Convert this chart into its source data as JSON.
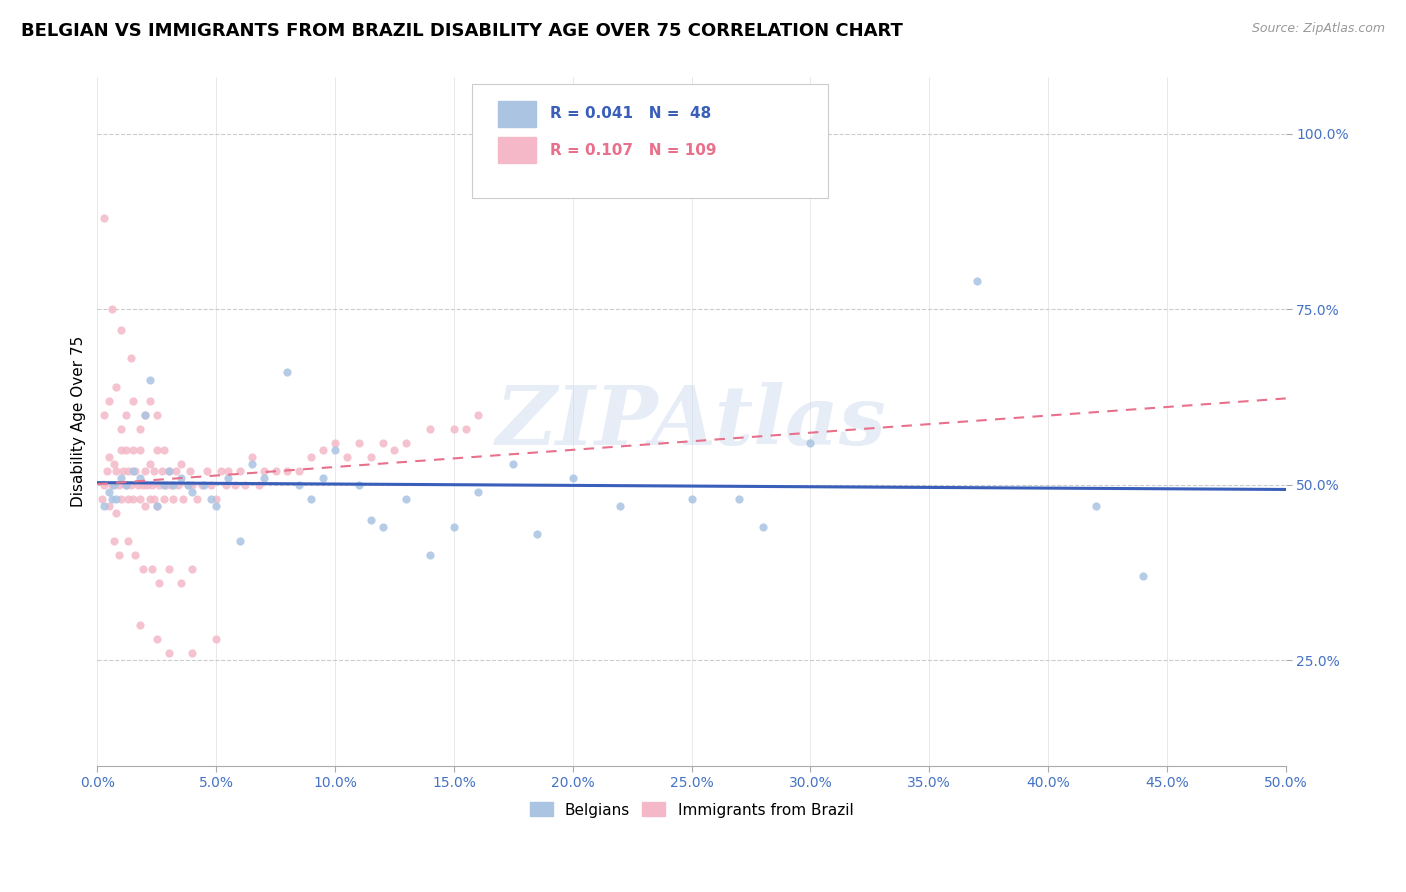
{
  "title": "BELGIAN VS IMMIGRANTS FROM BRAZIL DISABILITY AGE OVER 75 CORRELATION CHART",
  "source_text": "Source: ZipAtlas.com",
  "ylabel": "Disability Age Over 75",
  "xlim": [
    0.0,
    0.5
  ],
  "ylim": [
    0.1,
    1.08
  ],
  "x_tick_labels": [
    "0.0%",
    "5.0%",
    "10.0%",
    "15.0%",
    "20.0%",
    "25.0%",
    "30.0%",
    "35.0%",
    "40.0%",
    "45.0%",
    "50.0%"
  ],
  "x_tick_vals": [
    0.0,
    0.05,
    0.1,
    0.15,
    0.2,
    0.25,
    0.3,
    0.35,
    0.4,
    0.45,
    0.5
  ],
  "y_tick_labels": [
    "25.0%",
    "50.0%",
    "75.0%",
    "100.0%"
  ],
  "y_tick_vals": [
    0.25,
    0.5,
    0.75,
    1.0
  ],
  "belgian_color": "#aac4e2",
  "brazil_color": "#f4b8c8",
  "belgian_line_color": "#3a5fba",
  "brazil_line_color": "#e8708a",
  "legend_label_belgian": "Belgians",
  "legend_label_brazil": "Immigrants from Brazil",
  "watermark": "ZIPAtlas",
  "tick_color": "#4472c4",
  "background_color": "#ffffff",
  "belgian_scatter_x": [
    0.003,
    0.005,
    0.006,
    0.007,
    0.008,
    0.01,
    0.012,
    0.015,
    0.018,
    0.02,
    0.022,
    0.025,
    0.028,
    0.03,
    0.032,
    0.035,
    0.038,
    0.04,
    0.045,
    0.048,
    0.05,
    0.055,
    0.06,
    0.065,
    0.07,
    0.08,
    0.085,
    0.09,
    0.095,
    0.1,
    0.11,
    0.115,
    0.12,
    0.13,
    0.14,
    0.15,
    0.16,
    0.175,
    0.185,
    0.2,
    0.22,
    0.25,
    0.27,
    0.3,
    0.37,
    0.42,
    0.44,
    0.28
  ],
  "belgian_scatter_y": [
    0.47,
    0.49,
    0.48,
    0.5,
    0.48,
    0.51,
    0.5,
    0.52,
    0.51,
    0.6,
    0.65,
    0.47,
    0.5,
    0.52,
    0.5,
    0.51,
    0.5,
    0.49,
    0.5,
    0.48,
    0.47,
    0.51,
    0.42,
    0.53,
    0.51,
    0.66,
    0.5,
    0.48,
    0.51,
    0.55,
    0.5,
    0.45,
    0.44,
    0.48,
    0.4,
    0.44,
    0.49,
    0.53,
    0.43,
    0.51,
    0.47,
    0.48,
    0.48,
    0.56,
    0.79,
    0.47,
    0.37,
    0.44
  ],
  "brazil_scatter_x": [
    0.002,
    0.003,
    0.004,
    0.005,
    0.005,
    0.006,
    0.007,
    0.008,
    0.008,
    0.009,
    0.01,
    0.01,
    0.011,
    0.012,
    0.012,
    0.013,
    0.013,
    0.014,
    0.015,
    0.015,
    0.016,
    0.017,
    0.018,
    0.018,
    0.019,
    0.02,
    0.02,
    0.021,
    0.022,
    0.022,
    0.023,
    0.024,
    0.024,
    0.025,
    0.025,
    0.026,
    0.027,
    0.028,
    0.028,
    0.029,
    0.03,
    0.031,
    0.032,
    0.033,
    0.034,
    0.035,
    0.036,
    0.038,
    0.039,
    0.04,
    0.042,
    0.044,
    0.046,
    0.048,
    0.05,
    0.052,
    0.054,
    0.055,
    0.058,
    0.06,
    0.062,
    0.065,
    0.068,
    0.07,
    0.075,
    0.08,
    0.085,
    0.09,
    0.095,
    0.1,
    0.105,
    0.11,
    0.115,
    0.12,
    0.125,
    0.13,
    0.14,
    0.15,
    0.155,
    0.16,
    0.003,
    0.005,
    0.008,
    0.01,
    0.012,
    0.015,
    0.018,
    0.02,
    0.022,
    0.025,
    0.007,
    0.009,
    0.013,
    0.016,
    0.019,
    0.023,
    0.026,
    0.03,
    0.035,
    0.04,
    0.003,
    0.006,
    0.01,
    0.014,
    0.018,
    0.025,
    0.03,
    0.04,
    0.05
  ],
  "brazil_scatter_y": [
    0.48,
    0.5,
    0.52,
    0.47,
    0.54,
    0.5,
    0.53,
    0.46,
    0.52,
    0.5,
    0.55,
    0.48,
    0.52,
    0.5,
    0.55,
    0.48,
    0.52,
    0.5,
    0.55,
    0.48,
    0.52,
    0.5,
    0.48,
    0.55,
    0.5,
    0.52,
    0.47,
    0.5,
    0.53,
    0.48,
    0.5,
    0.52,
    0.48,
    0.55,
    0.47,
    0.5,
    0.52,
    0.48,
    0.55,
    0.5,
    0.52,
    0.5,
    0.48,
    0.52,
    0.5,
    0.53,
    0.48,
    0.5,
    0.52,
    0.5,
    0.48,
    0.5,
    0.52,
    0.5,
    0.48,
    0.52,
    0.5,
    0.52,
    0.5,
    0.52,
    0.5,
    0.54,
    0.5,
    0.52,
    0.52,
    0.52,
    0.52,
    0.54,
    0.55,
    0.56,
    0.54,
    0.56,
    0.54,
    0.56,
    0.55,
    0.56,
    0.58,
    0.58,
    0.58,
    0.6,
    0.6,
    0.62,
    0.64,
    0.58,
    0.6,
    0.62,
    0.58,
    0.6,
    0.62,
    0.6,
    0.42,
    0.4,
    0.42,
    0.4,
    0.38,
    0.38,
    0.36,
    0.38,
    0.36,
    0.38,
    0.88,
    0.75,
    0.72,
    0.68,
    0.3,
    0.28,
    0.26,
    0.26,
    0.28
  ]
}
